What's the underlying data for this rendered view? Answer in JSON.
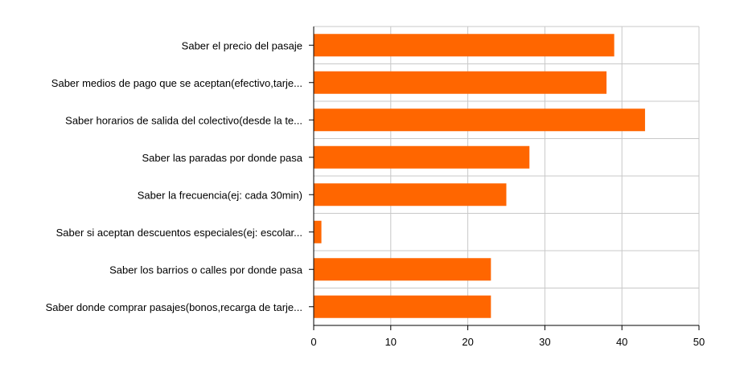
{
  "chart_data": {
    "type": "bar",
    "orientation": "horizontal",
    "categories": [
      "Saber el precio del pasaje",
      "Saber medios de pago que se aceptan(efectivo,tarje...",
      "Saber horarios de salida del colectivo(desde la te...",
      "Saber las paradas por donde pasa",
      "Saber la frecuencia(ej: cada 30min)",
      "Saber si aceptan descuentos especiales(ej: escolar...",
      "Saber los barrios o calles por donde pasa",
      "Saber donde comprar pasajes(bonos,recarga de tarje..."
    ],
    "values": [
      39,
      38,
      43,
      28,
      25,
      1,
      23,
      23
    ],
    "xlim": [
      0,
      50
    ],
    "xticks": [
      "0",
      "10",
      "20",
      "30",
      "40",
      "50"
    ],
    "grid": true,
    "bar_color": "#ff6600",
    "grid_color": "#c8c8c8",
    "title": "",
    "xlabel": "",
    "ylabel": ""
  }
}
